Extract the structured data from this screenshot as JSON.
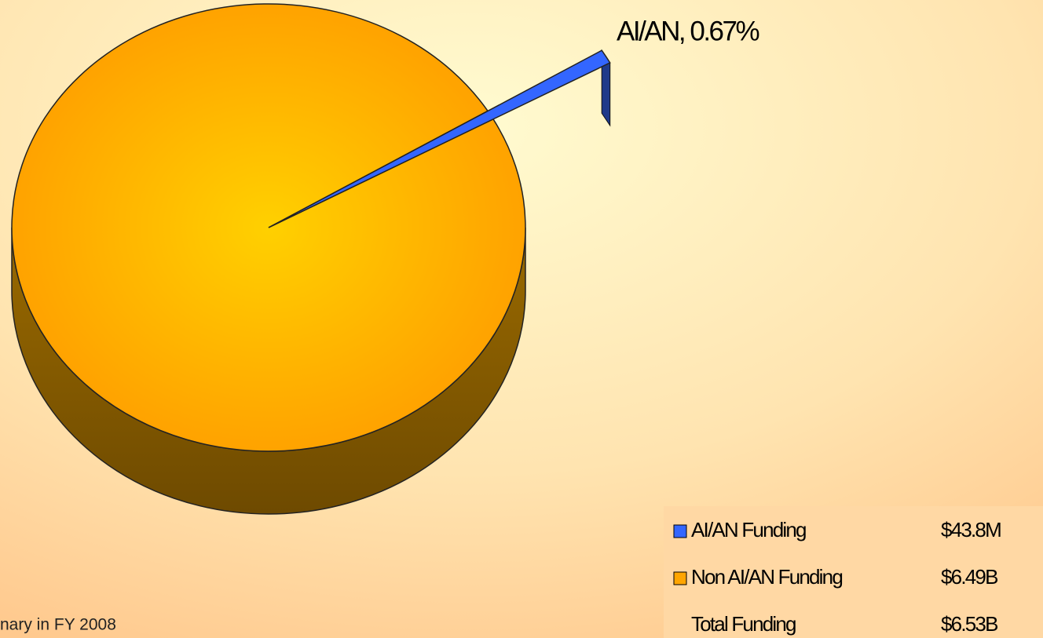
{
  "chart_data": {
    "type": "pie3d",
    "categories": [
      "AI/AN Funding",
      "Non AI/AN Funding"
    ],
    "values": [
      0.67,
      99.33
    ],
    "value_labels": [
      "AI/AN, 0.67%",
      null
    ],
    "colors": [
      "#3366ff",
      "#ffa500"
    ],
    "legend_amounts": [
      "$43.8M",
      "$6.49B"
    ],
    "total_label": "Total Funding",
    "total_amount": "$6.53B",
    "footnote": "nary  in FY 2008"
  }
}
